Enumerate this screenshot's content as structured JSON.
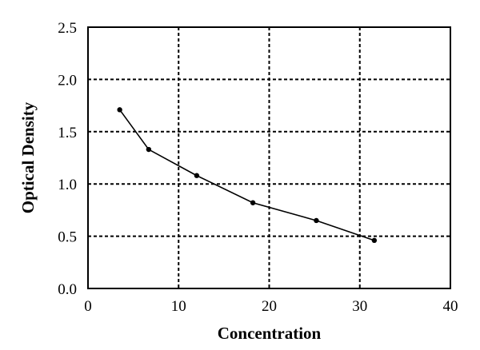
{
  "chart_data": {
    "type": "line",
    "title": "",
    "xlabel": "Concentration",
    "ylabel": "Optical Density",
    "xlim": [
      0,
      40
    ],
    "ylim": [
      0.0,
      2.5
    ],
    "x_ticks": [
      0,
      10,
      20,
      30,
      40
    ],
    "x_tick_labels": [
      "0",
      "10",
      "20",
      "30",
      "40"
    ],
    "y_ticks": [
      0.0,
      0.5,
      1.0,
      1.5,
      2.0,
      2.5
    ],
    "y_tick_labels": [
      "0.0",
      "0.5",
      "1.0",
      "1.5",
      "2.0",
      "2.5"
    ],
    "grid": true,
    "legend": "none",
    "series": [
      {
        "x": [
          3.5,
          6.7,
          12.0,
          18.2,
          25.2,
          31.6
        ],
        "y": [
          1.71,
          1.33,
          1.08,
          0.82,
          0.65,
          0.46
        ],
        "color": "#000000"
      }
    ]
  }
}
